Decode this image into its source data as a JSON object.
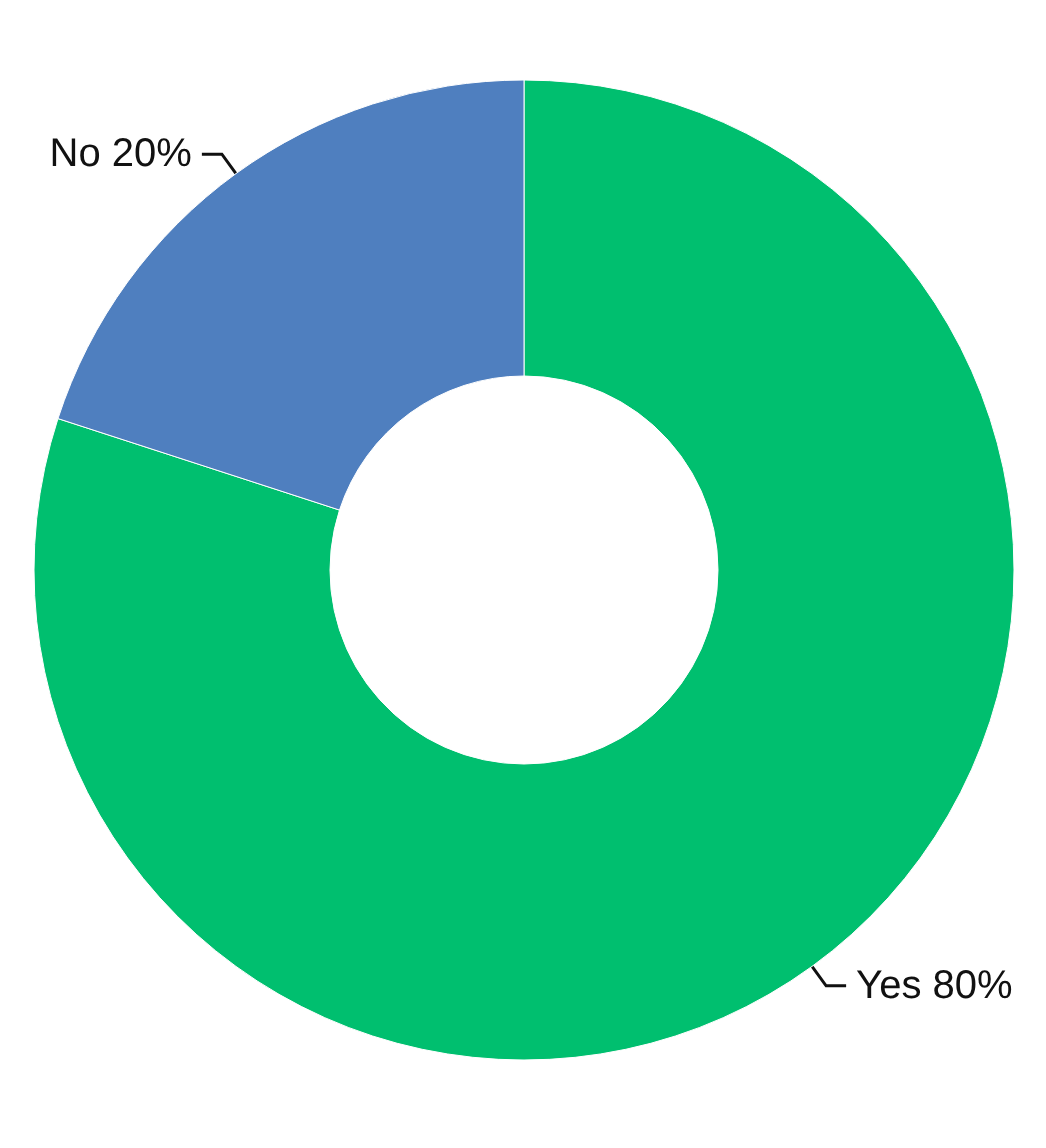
{
  "chart_data": {
    "type": "donut",
    "categories": [
      "Yes",
      "No"
    ],
    "values": [
      80,
      20
    ],
    "colors": [
      "#00bf6f",
      "#4f7fbf"
    ],
    "value_labels": [
      "80%",
      "20%"
    ],
    "legend": false
  }
}
